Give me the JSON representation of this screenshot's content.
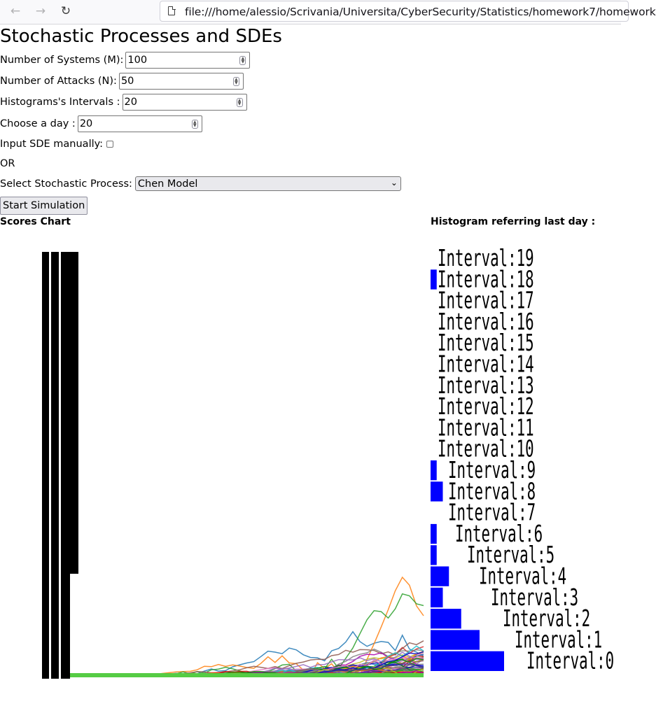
{
  "browser": {
    "url": "file:///home/alessio/Scrivania/Universita/CyberSecurity/Statistics/homework7/homework",
    "back_icon": "arrow-left-icon",
    "forward_icon": "arrow-right-icon",
    "reload_icon": "reload-icon"
  },
  "page": {
    "title": "Stochastic Processes and SDEs"
  },
  "form": {
    "systems": {
      "label": "Number of Systems (M):",
      "value": "100"
    },
    "attacks": {
      "label": "Number of Attacks (N):",
      "value": "50"
    },
    "intervals": {
      "label": "Histograms's Intervals :",
      "value": "20"
    },
    "day": {
      "label": "Choose a day :",
      "value": "20"
    },
    "manual": {
      "label": "Input SDE manually:",
      "checked": false
    },
    "or_text": "OR",
    "process": {
      "label": "Select Stochastic Process:",
      "selected": "Chen Model"
    },
    "start_label": "Start Simulation"
  },
  "scores_chart": {
    "label": "Scores Chart"
  },
  "histogram": {
    "label": "Histogram referring last day :",
    "bar_color": "#0000ff",
    "bins": [
      {
        "label": "Interval:19",
        "count": 0
      },
      {
        "label": "Interval:18",
        "count": 1
      },
      {
        "label": "Interval:17",
        "count": 0
      },
      {
        "label": "Interval:16",
        "count": 0
      },
      {
        "label": "Interval:15",
        "count": 0
      },
      {
        "label": "Interval:14",
        "count": 0
      },
      {
        "label": "Interval:13",
        "count": 0
      },
      {
        "label": "Interval:12",
        "count": 0
      },
      {
        "label": "Interval:11",
        "count": 0
      },
      {
        "label": "Interval:10",
        "count": 0
      },
      {
        "label": "Interval:9",
        "count": 1
      },
      {
        "label": "Interval:8",
        "count": 2
      },
      {
        "label": "Interval:7",
        "count": 0
      },
      {
        "label": "Interval:6",
        "count": 1
      },
      {
        "label": "Interval:5",
        "count": 1
      },
      {
        "label": "Interval:4",
        "count": 3
      },
      {
        "label": "Interval:3",
        "count": 2
      },
      {
        "label": "Interval:2",
        "count": 5
      },
      {
        "label": "Interval:1",
        "count": 8
      },
      {
        "label": "Interval:0",
        "count": 12
      }
    ]
  }
}
